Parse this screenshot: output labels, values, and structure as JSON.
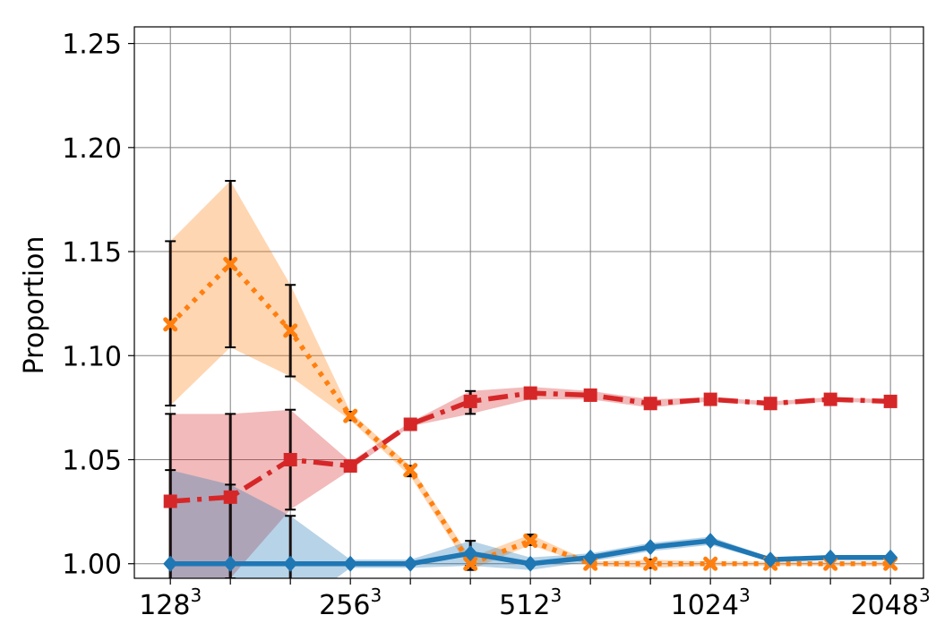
{
  "chart_data": {
    "type": "line",
    "title": "",
    "xlabel": "",
    "ylabel": "Proportion",
    "ylim": [
      0.993,
      1.258
    ],
    "y_ticks": [
      1.0,
      1.05,
      1.1,
      1.15,
      1.2,
      1.25
    ],
    "y_tick_labels": [
      "1.00",
      "1.05",
      "1.10",
      "1.15",
      "1.20",
      "1.25"
    ],
    "x_positions": [
      1,
      2,
      3,
      4,
      5,
      6,
      7,
      8,
      9,
      10,
      11,
      12,
      13
    ],
    "xlim": [
      0.4,
      13.55
    ],
    "x_tick_labels": [
      {
        "x": 1,
        "base": "128",
        "exp": "3"
      },
      {
        "x": 4,
        "base": "256",
        "exp": "3"
      },
      {
        "x": 7,
        "base": "512",
        "exp": "3"
      },
      {
        "x": 10,
        "base": "1024",
        "exp": "3"
      },
      {
        "x": 13,
        "base": "2048",
        "exp": "3"
      }
    ],
    "grid": true,
    "legend": "none",
    "series": [
      {
        "color": "#ff7f0e",
        "line_style": "dotted",
        "marker": "x",
        "values": [
          1.115,
          1.144,
          1.112,
          1.071,
          1.045,
          1.0,
          1.011,
          1.0,
          1.0,
          1.0,
          1.0,
          1.0,
          1.0
        ],
        "band_lower": [
          1.076,
          1.104,
          1.09,
          1.069,
          1.042,
          0.997,
          1.009,
          0.999,
          0.998,
          0.999,
          0.999,
          0.999,
          0.999
        ],
        "band_upper": [
          1.155,
          1.184,
          1.134,
          1.073,
          1.047,
          1.003,
          1.014,
          1.001,
          1.002,
          1.001,
          1.001,
          1.001,
          1.001
        ],
        "errorbar_indices": [
          0,
          1,
          2,
          3,
          4,
          5,
          6,
          8
        ]
      },
      {
        "color": "#d62728",
        "line_style": "dashdot",
        "marker": "square",
        "values": [
          1.03,
          1.032,
          1.05,
          1.047,
          1.067,
          1.078,
          1.082,
          1.081,
          1.077,
          1.079,
          1.077,
          1.079,
          1.078
        ],
        "band_lower": [
          0.988,
          0.993,
          1.026,
          1.045,
          1.066,
          1.072,
          1.079,
          1.079,
          1.075,
          1.078,
          1.076,
          1.078,
          1.077
        ],
        "band_upper": [
          1.072,
          1.072,
          1.074,
          1.049,
          1.068,
          1.083,
          1.085,
          1.083,
          1.079,
          1.08,
          1.078,
          1.08,
          1.079
        ],
        "errorbar_indices": [
          0,
          1,
          2,
          5
        ]
      },
      {
        "color": "#1f77b4",
        "line_style": "solid",
        "marker": "diamond",
        "values": [
          1.0,
          1.0,
          1.0,
          1.0,
          1.0,
          1.005,
          1.0,
          1.003,
          1.008,
          1.011,
          1.002,
          1.003,
          1.003
        ],
        "band_lower": [
          0.955,
          0.962,
          0.977,
          0.998,
          0.998,
          0.999,
          0.997,
          1.001,
          1.006,
          1.009,
          1.001,
          1.002,
          1.002
        ],
        "band_upper": [
          1.045,
          1.038,
          1.023,
          1.002,
          1.002,
          1.011,
          1.003,
          1.005,
          1.01,
          1.013,
          1.003,
          1.004,
          1.004
        ],
        "errorbar_indices": [
          0,
          1,
          2,
          5
        ]
      }
    ]
  }
}
